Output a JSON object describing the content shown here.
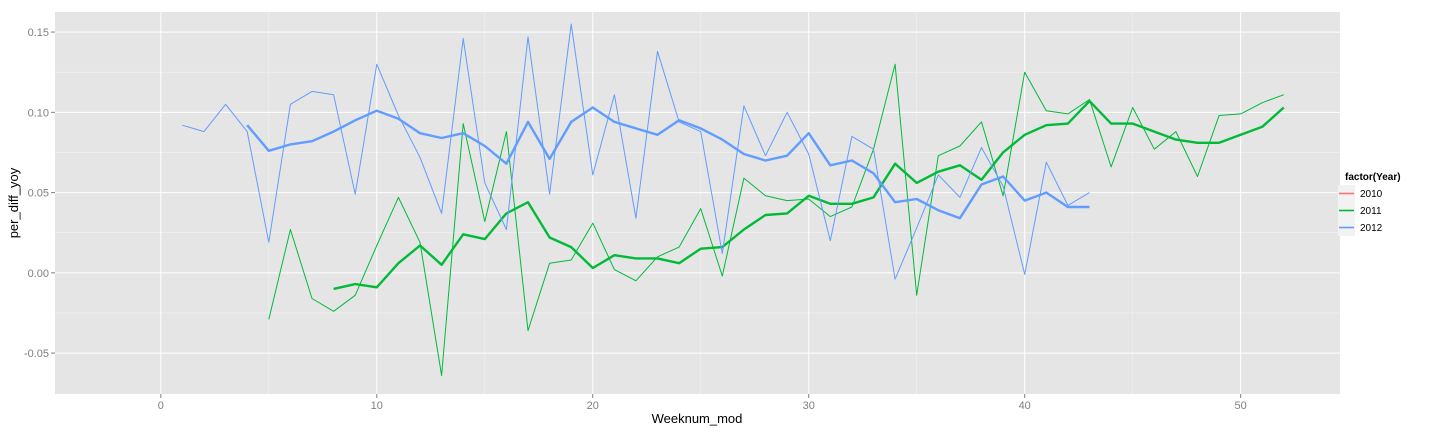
{
  "chart_data": {
    "type": "line",
    "xlabel": "Weeknum_mod",
    "ylabel": "per_diff_yoy",
    "xlim": [
      -4.9,
      54.6
    ],
    "ylim": [
      -0.0755,
      0.1625
    ],
    "x_ticks": [
      0,
      10,
      20,
      30,
      40,
      50
    ],
    "x_tick_labels": [
      "0",
      "10",
      "20",
      "30",
      "40",
      "50"
    ],
    "y_ticks": [
      -0.05,
      0.0,
      0.05,
      0.1,
      0.15
    ],
    "y_tick_labels": [
      "-0.05",
      "0.00",
      "0.05",
      "0.10",
      "0.15"
    ],
    "background": "#e5e5e5",
    "grid": true,
    "legend": {
      "title": "factor(Year)",
      "placement": "right",
      "entries": [
        {
          "label": "2010",
          "color": "#f8766d"
        },
        {
          "label": "2011",
          "color": "#00ba38"
        },
        {
          "label": "2012",
          "color": "#619cff"
        }
      ]
    },
    "series": [
      {
        "name": "2011",
        "color": "#00ba38",
        "style": "thin",
        "x": [
          5,
          6,
          7,
          8,
          9,
          10,
          11,
          12,
          13,
          14,
          15,
          16,
          17,
          18,
          19,
          20,
          21,
          22,
          23,
          24,
          25,
          26,
          27,
          28,
          29,
          30,
          31,
          32,
          33,
          34,
          35,
          36,
          37,
          38,
          39,
          40,
          41,
          42,
          43,
          44,
          45,
          46,
          47,
          48,
          49,
          50,
          51,
          52
        ],
        "y": [
          -0.029,
          0.027,
          -0.016,
          -0.024,
          -0.014,
          0.017,
          0.047,
          0.019,
          -0.064,
          0.093,
          0.032,
          0.088,
          -0.036,
          0.006,
          0.008,
          0.031,
          0.002,
          -0.005,
          0.01,
          0.016,
          0.04,
          -0.002,
          0.059,
          0.048,
          0.045,
          0.046,
          0.035,
          0.041,
          0.077,
          0.13,
          -0.014,
          0.073,
          0.079,
          0.094,
          0.048,
          0.125,
          0.101,
          0.099,
          0.108,
          0.066,
          0.103,
          0.077,
          0.088,
          0.06,
          0.098,
          0.099,
          0.106,
          0.111
        ]
      },
      {
        "name": "2011",
        "color": "#00ba38",
        "style": "smoothed",
        "x": [
          8,
          9,
          10,
          11,
          12,
          13,
          14,
          15,
          16,
          17,
          18,
          19,
          20,
          21,
          22,
          23,
          24,
          25,
          26,
          27,
          28,
          29,
          30,
          31,
          32,
          33,
          34,
          35,
          36,
          37,
          38,
          39,
          40,
          41,
          42,
          43,
          44,
          45,
          46,
          47,
          48,
          49,
          50,
          51,
          52
        ],
        "y": [
          -0.01,
          -0.007,
          -0.009,
          0.006,
          0.017,
          0.005,
          0.024,
          0.021,
          0.037,
          0.044,
          0.022,
          0.016,
          0.003,
          0.011,
          0.009,
          0.009,
          0.006,
          0.015,
          0.016,
          0.027,
          0.036,
          0.037,
          0.048,
          0.043,
          0.043,
          0.047,
          0.068,
          0.056,
          0.063,
          0.067,
          0.058,
          0.075,
          0.086,
          0.092,
          0.093,
          0.107,
          0.093,
          0.093,
          0.088,
          0.083,
          0.081,
          0.081,
          0.086,
          0.091,
          0.103
        ]
      },
      {
        "name": "2012",
        "color": "#619cff",
        "style": "thin",
        "x": [
          1,
          2,
          3,
          4,
          5,
          6,
          7,
          8,
          9,
          10,
          11,
          12,
          13,
          14,
          15,
          16,
          17,
          18,
          19,
          20,
          21,
          22,
          23,
          24,
          25,
          26,
          27,
          28,
          29,
          30,
          31,
          32,
          33,
          34,
          35,
          36,
          37,
          38,
          39,
          40,
          41,
          42,
          43
        ],
        "y": [
          0.092,
          0.088,
          0.105,
          0.088,
          0.019,
          0.105,
          0.113,
          0.111,
          0.049,
          0.13,
          0.098,
          0.072,
          0.037,
          0.146,
          0.056,
          0.027,
          0.147,
          0.049,
          0.155,
          0.061,
          0.111,
          0.034,
          0.138,
          0.094,
          0.088,
          0.012,
          0.104,
          0.073,
          0.1,
          0.074,
          0.02,
          0.085,
          0.077,
          -0.004,
          0.028,
          0.061,
          0.047,
          0.078,
          0.054,
          -0.001,
          0.069,
          0.042,
          0.05
        ]
      },
      {
        "name": "2012",
        "color": "#619cff",
        "style": "smoothed",
        "x": [
          4,
          5,
          6,
          7,
          8,
          9,
          10,
          11,
          12,
          13,
          14,
          15,
          16,
          17,
          18,
          19,
          20,
          21,
          22,
          23,
          24,
          25,
          26,
          27,
          28,
          29,
          30,
          31,
          32,
          33,
          34,
          35,
          36,
          37,
          38,
          39,
          40,
          41,
          42,
          43
        ],
        "y": [
          0.092,
          0.076,
          0.08,
          0.082,
          0.088,
          0.095,
          0.101,
          0.096,
          0.087,
          0.084,
          0.087,
          0.079,
          0.068,
          0.094,
          0.071,
          0.094,
          0.103,
          0.094,
          0.09,
          0.086,
          0.095,
          0.09,
          0.083,
          0.074,
          0.07,
          0.073,
          0.087,
          0.067,
          0.07,
          0.062,
          0.044,
          0.046,
          0.039,
          0.034,
          0.055,
          0.06,
          0.045,
          0.05,
          0.041,
          0.041
        ]
      }
    ]
  }
}
